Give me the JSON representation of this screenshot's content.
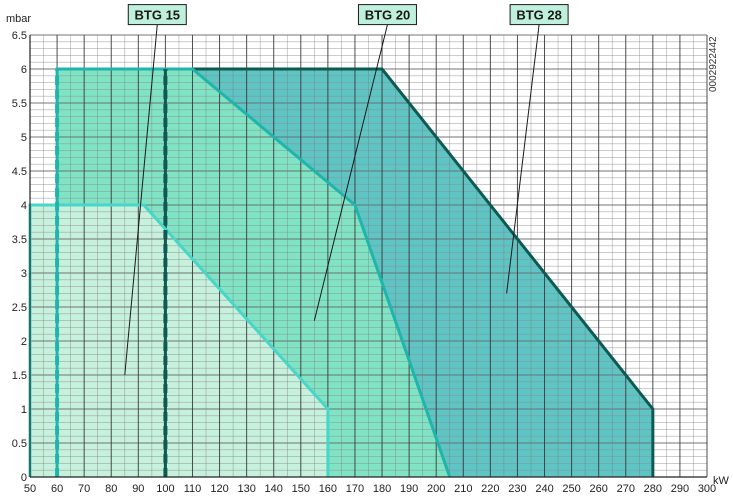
{
  "chart_data": {
    "type": "area",
    "title": "",
    "xlabel": "kW",
    "ylabel": "mbar",
    "xlim": [
      50,
      300
    ],
    "ylim": [
      0,
      6.5
    ],
    "x_ticks": [
      50,
      60,
      70,
      80,
      90,
      100,
      110,
      120,
      130,
      140,
      150,
      160,
      170,
      180,
      190,
      200,
      210,
      220,
      230,
      240,
      250,
      260,
      270,
      280,
      290,
      300
    ],
    "y_ticks": [
      0,
      0.5,
      1,
      1.5,
      2,
      2.5,
      3,
      3.5,
      4,
      4.5,
      5,
      5.5,
      6,
      6.5
    ],
    "y_tick_labels": [
      "0",
      "0.5",
      "1",
      "1.5",
      "2",
      "2.5",
      "3",
      "3.5",
      "4",
      "4.5",
      "5",
      "5.5",
      "6",
      "6.5"
    ],
    "grid": true,
    "series": [
      {
        "name": "BTG 28",
        "fill": "#5ec4c4",
        "stroke": "#0e5a52",
        "points": [
          [
            100,
            0
          ],
          [
            100,
            6
          ],
          [
            180,
            6
          ],
          [
            280,
            1
          ],
          [
            280,
            0
          ]
        ]
      },
      {
        "name": "BTG 20",
        "fill": "#7fe3c4",
        "stroke": "#1fb5ad",
        "points": [
          [
            60,
            0
          ],
          [
            60,
            6
          ],
          [
            110,
            6
          ],
          [
            170,
            4
          ],
          [
            205,
            0
          ]
        ]
      },
      {
        "name": "BTG 15",
        "fill": "#c6f1dc",
        "stroke": "#48d6c8",
        "points": [
          [
            50,
            0
          ],
          [
            50,
            4
          ],
          [
            92,
            4
          ],
          [
            160,
            1
          ],
          [
            160,
            0
          ]
        ]
      }
    ],
    "minimum_output_lines": [
      {
        "x": 60,
        "color": "#1fb5ad"
      },
      {
        "x": 100,
        "color": "#0e5a52"
      }
    ],
    "annotations": [
      {
        "label": "BTG 15",
        "box_x": 97,
        "box_y": 6.8,
        "point_x": 85,
        "point_y": 1.5
      },
      {
        "label": "BTG 20",
        "box_x": 182,
        "box_y": 6.8,
        "point_x": 155,
        "point_y": 2.3
      },
      {
        "label": "BTG 28",
        "box_x": 238,
        "box_y": 6.8,
        "point_x": 226,
        "point_y": 2.7
      }
    ],
    "side_code": "0002922442"
  }
}
